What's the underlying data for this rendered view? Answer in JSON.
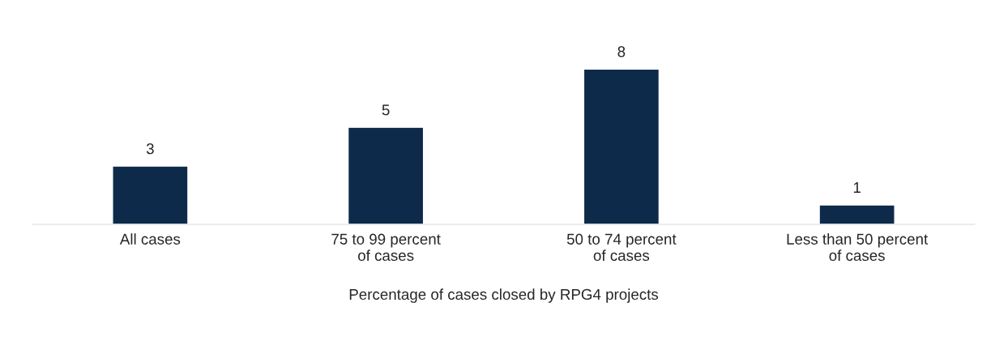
{
  "chart_data": {
    "type": "bar",
    "xlabel": "Percentage of cases closed by RPG4 projects",
    "categories": [
      "All cases",
      "75 to 99 percent\nof cases",
      "50 to 74 percent\nof cases",
      "Less than 50 percent\nof cases"
    ],
    "values": [
      3,
      5,
      8,
      1
    ],
    "color": "#0d2a4a",
    "data_labels": true
  }
}
